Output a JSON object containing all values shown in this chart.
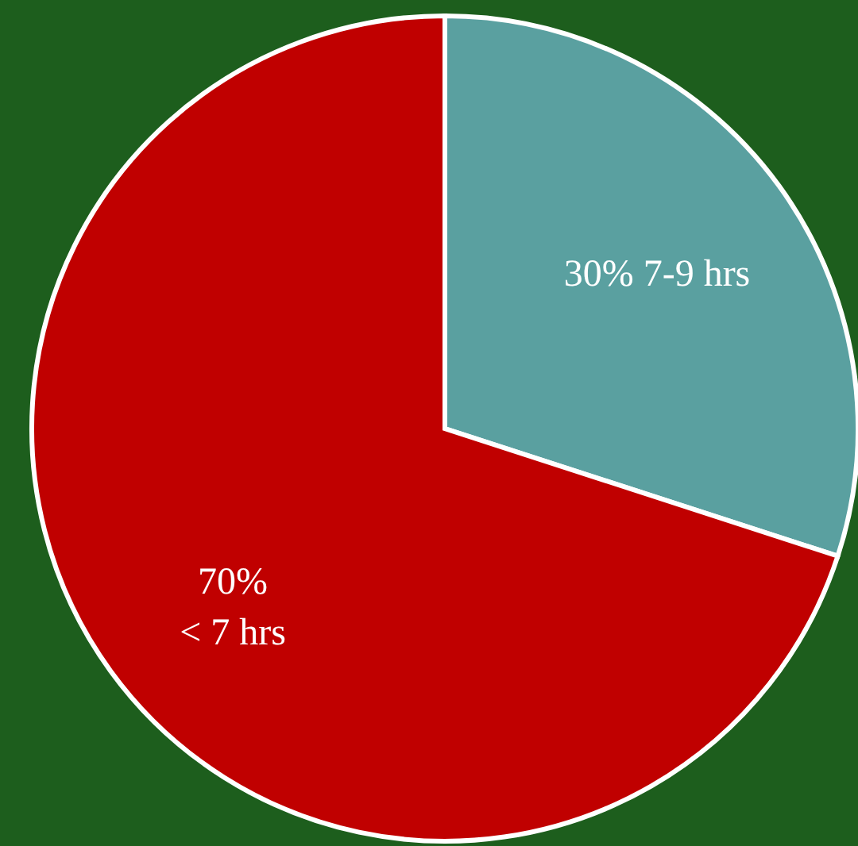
{
  "chart_data": {
    "type": "pie",
    "categories": [
      "7-9 hrs",
      "< 7 hrs"
    ],
    "values": [
      30,
      70
    ],
    "value_labels": [
      "30%",
      "70%"
    ],
    "colors": [
      "#5aa0a0",
      "#c00000"
    ]
  }
}
